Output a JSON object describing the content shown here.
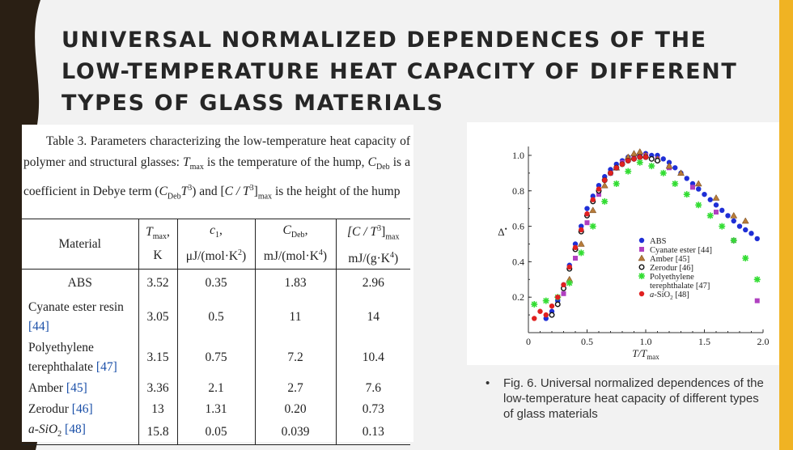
{
  "title": "UNIVERSAL NORMALIZED DEPENDENCES OF THE LOW-TEMPERATURE HEAT CAPACITY OF DIFFERENT TYPES OF GLASS MATERIALS",
  "table": {
    "caption_label": "Table 3.",
    "caption_part1": "Parameters characterizing the low-temperature heat capacity of polymer and structural glasses: ",
    "caption_tmax_sym": "T",
    "caption_tmax_sub": "max",
    "caption_part2": " is the temperature of the hump, ",
    "caption_cdeb_sym": "C",
    "caption_cdeb_sub": "Deb",
    "caption_part3": " is a coefficient in Debye term (",
    "caption_term": "C",
    "caption_term_sub": "Deb",
    "caption_term_t": "T",
    "caption_term_sup": "3",
    "caption_part4": ") and [",
    "caption_ratio": "C / T",
    "caption_ratio_sup": "3",
    "caption_ratio_sub": "max",
    "caption_part5": " is the height of the hump",
    "headers": {
      "material": "Material",
      "tmax_sym": "T",
      "tmax_sub": "max",
      "tmax_unit": "K",
      "c1_sym": "c",
      "c1_sub": "1",
      "c1_unit_a": "μJ/(mol·K",
      "c1_unit_sup": "2",
      "c1_unit_b": ")",
      "cdeb_sym": "C",
      "cdeb_sub": "Deb",
      "cdeb_unit_a": "mJ/(mol·K",
      "cdeb_unit_sup": "4",
      "cdeb_unit_b": ")",
      "ratio_sym": "[C / T",
      "ratio_sup": "3",
      "ratio_close": "]",
      "ratio_sub": "max",
      "ratio_unit_a": "mJ/(g·K",
      "ratio_unit_sup": "4",
      "ratio_unit_b": ")"
    },
    "rows": [
      {
        "name": "ABS",
        "ref": "",
        "tmax": "3.52",
        "c1": "0.35",
        "cdeb": "1.83",
        "ratio": "2.96"
      },
      {
        "name": "Cyanate ester resin",
        "ref": "[44]",
        "tmax": "3.05",
        "c1": "0.5",
        "cdeb": "11",
        "ratio": "14"
      },
      {
        "name": "Polyethylene terephthalate",
        "ref": "[47]",
        "tmax": "3.15",
        "c1": "0.75",
        "cdeb": "7.2",
        "ratio": "10.4"
      },
      {
        "name": "Amber",
        "ref": "[45]",
        "tmax": "3.36",
        "c1": "2.1",
        "cdeb": "2.7",
        "ratio": "7.6"
      },
      {
        "name": "Zerodur",
        "ref": "[46]",
        "tmax": "13",
        "c1": "1.31",
        "cdeb": "0.20",
        "ratio": "0.73"
      },
      {
        "name": "a-SiO",
        "ref": "[48]",
        "tmax": "15.8",
        "c1": "0.05",
        "cdeb": "0.039",
        "ratio": "0.13"
      }
    ]
  },
  "figure_caption": "Fig. 6. Universal normalized dependences of the low-temperature heat capacity of different types of glass materials",
  "chart_data": {
    "type": "scatter",
    "xlabel": "T/T",
    "xlabel_sub": "max",
    "ylabel": "Δ",
    "ylabel_sup": "•",
    "xlim": [
      0,
      2.0
    ],
    "ylim": [
      0,
      1.05
    ],
    "xticks": [
      "0",
      "0.5",
      "1.0",
      "1.5",
      "2.0"
    ],
    "yticks": [
      "0.2",
      "0.4",
      "0.6",
      "0.8",
      "1.0"
    ],
    "legend_position": "center-right",
    "series": [
      {
        "name": "ABS",
        "marker": "circle",
        "color": "#1f2fd6",
        "x": [
          0.15,
          0.2,
          0.25,
          0.3,
          0.35,
          0.4,
          0.45,
          0.5,
          0.55,
          0.6,
          0.65,
          0.7,
          0.75,
          0.8,
          0.85,
          0.9,
          0.95,
          1.0,
          1.05,
          1.1,
          1.15,
          1.2,
          1.25,
          1.3,
          1.35,
          1.4,
          1.45,
          1.5,
          1.55,
          1.6,
          1.65,
          1.7,
          1.75,
          1.8,
          1.85,
          1.9,
          1.95
        ],
        "y": [
          0.08,
          0.12,
          0.18,
          0.27,
          0.38,
          0.5,
          0.6,
          0.7,
          0.77,
          0.83,
          0.88,
          0.92,
          0.95,
          0.97,
          0.99,
          1.0,
          1.0,
          1.01,
          1.0,
          1.0,
          0.98,
          0.96,
          0.93,
          0.9,
          0.87,
          0.84,
          0.81,
          0.78,
          0.75,
          0.72,
          0.69,
          0.66,
          0.63,
          0.6,
          0.58,
          0.56,
          0.53
        ]
      },
      {
        "name": "Cyanate ester [44]",
        "marker": "square",
        "color": "#b040c0",
        "x": [
          0.3,
          0.4,
          0.5,
          0.6,
          0.7,
          0.8,
          0.9,
          1.0,
          1.1,
          1.2,
          1.4,
          1.6,
          1.75,
          1.95
        ],
        "y": [
          0.22,
          0.42,
          0.62,
          0.78,
          0.9,
          0.96,
          0.99,
          1.0,
          0.98,
          0.93,
          0.82,
          0.68,
          0.52,
          0.18
        ]
      },
      {
        "name": "Amber [45]",
        "marker": "triangle",
        "color": "#b87c3a",
        "x": [
          0.35,
          0.45,
          0.55,
          0.65,
          0.75,
          0.85,
          0.9,
          0.95,
          1.0,
          1.1,
          1.2,
          1.3,
          1.45,
          1.6,
          1.75,
          1.85
        ],
        "y": [
          0.3,
          0.5,
          0.69,
          0.83,
          0.93,
          0.99,
          1.01,
          1.02,
          1.0,
          0.98,
          0.94,
          0.9,
          0.84,
          0.76,
          0.66,
          0.63
        ]
      },
      {
        "name": "Zerodur [46]",
        "marker": "circle-open",
        "color": "#111111",
        "x": [
          0.2,
          0.25,
          0.3,
          0.35,
          0.4,
          0.45,
          0.5,
          0.55,
          0.6,
          0.65,
          0.7,
          0.75,
          0.8,
          0.85,
          0.9,
          0.95,
          1.0,
          1.05,
          1.1
        ],
        "y": [
          0.1,
          0.16,
          0.25,
          0.36,
          0.47,
          0.57,
          0.66,
          0.74,
          0.8,
          0.86,
          0.9,
          0.93,
          0.95,
          0.97,
          0.98,
          0.99,
          0.99,
          0.98,
          0.97
        ]
      },
      {
        "name": "Polyethylene terephthalate [47]",
        "marker": "asterisk",
        "color": "#33dd33",
        "x": [
          0.05,
          0.15,
          0.25,
          0.35,
          0.45,
          0.55,
          0.65,
          0.75,
          0.85,
          0.95,
          1.05,
          1.15,
          1.25,
          1.35,
          1.45,
          1.55,
          1.65,
          1.75,
          1.85,
          1.95
        ],
        "y": [
          0.16,
          0.18,
          0.2,
          0.28,
          0.45,
          0.6,
          0.74,
          0.84,
          0.91,
          0.96,
          0.94,
          0.9,
          0.84,
          0.78,
          0.72,
          0.66,
          0.6,
          0.52,
          0.42,
          0.3
        ]
      },
      {
        "name": "a-SiO2 [48]",
        "marker": "circle",
        "color": "#e02020",
        "x": [
          0.05,
          0.1,
          0.15,
          0.2,
          0.25,
          0.3,
          0.35,
          0.4,
          0.45,
          0.5,
          0.55,
          0.6,
          0.65,
          0.7,
          0.75,
          0.8,
          0.85,
          0.9,
          0.95,
          1.0
        ],
        "y": [
          0.08,
          0.12,
          0.1,
          0.15,
          0.2,
          0.27,
          0.37,
          0.48,
          0.58,
          0.67,
          0.75,
          0.81,
          0.86,
          0.9,
          0.93,
          0.95,
          0.97,
          0.98,
          0.99,
          0.99
        ]
      }
    ]
  }
}
